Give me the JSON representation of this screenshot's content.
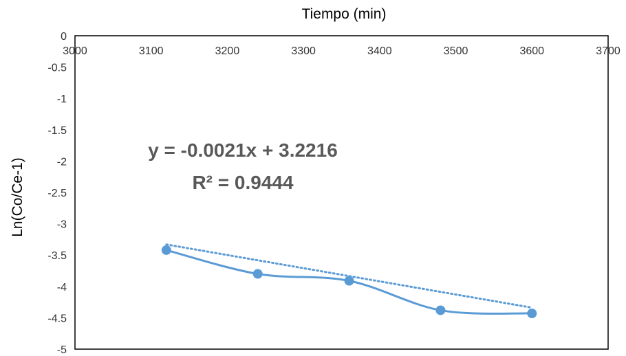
{
  "chart_data": {
    "type": "scatter",
    "title": "",
    "xlabel": "Tiempo (min)",
    "ylabel": "Ln(Co/Ce-1)",
    "xlim": [
      3000,
      3700
    ],
    "ylim": [
      -5,
      0
    ],
    "xticks": [
      3000,
      3100,
      3200,
      3300,
      3400,
      3500,
      3600,
      3700
    ],
    "yticks": [
      0,
      -0.5,
      -1,
      -1.5,
      -2,
      -2.5,
      -3,
      -3.5,
      -4,
      -4.5,
      -5
    ],
    "x_axis_position": "top",
    "grid": false,
    "legend": "none",
    "series": [
      {
        "x": [
          3120,
          3240,
          3360,
          3480,
          3600
        ],
        "y": [
          -3.42,
          -3.8,
          -3.91,
          -4.38,
          -4.43
        ],
        "line": "smooth",
        "marker": "circle",
        "color": "#5b9bd5"
      }
    ],
    "trendline": {
      "type": "linear",
      "slope": -0.0021,
      "intercept": 3.2216,
      "style": "dotted",
      "color": "#5b9bd5",
      "x_range": [
        3120,
        3600
      ]
    },
    "annotations": [
      {
        "text": "y = -0.0021x + 3.2216"
      },
      {
        "text": "R² = 0.9444"
      }
    ]
  }
}
